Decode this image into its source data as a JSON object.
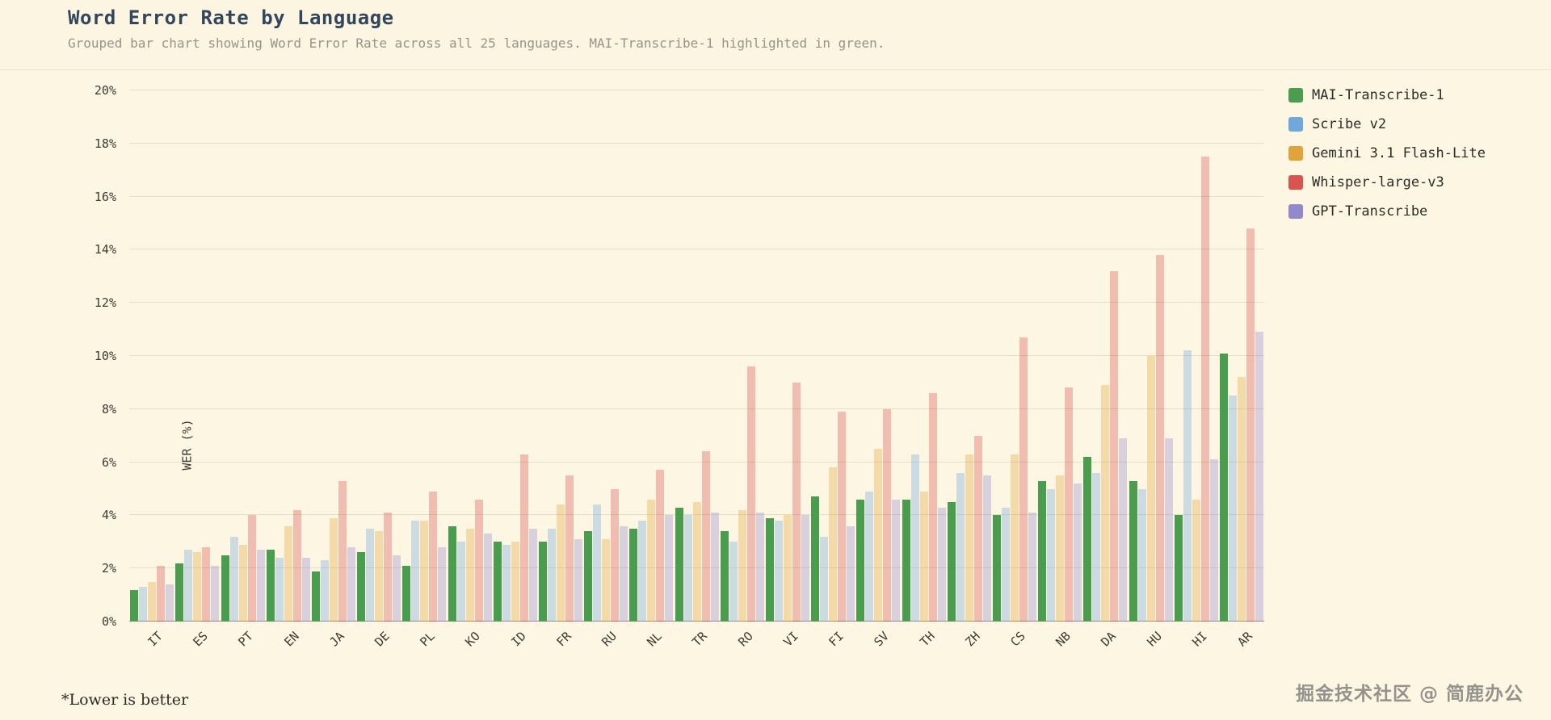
{
  "header": {
    "title": "Word Error Rate by Language",
    "subtitle": "Grouped bar chart showing Word Error Rate across all 25 languages. MAI-Transcribe-1 highlighted in green."
  },
  "footer": {
    "note": "*Lower is better",
    "watermark": "掘金技术社区 @ 简鹿办公"
  },
  "colors": {
    "background": "#fdf6e3",
    "title_text": "#33475c",
    "subtitle_text": "#98938b",
    "axis_text": "#3c3c35",
    "gridline": "#e4ddc7",
    "axis_line": "#8c867a",
    "highlight_green": "#4a9d4e"
  },
  "chart_data": {
    "type": "bar",
    "title": "Word Error Rate by Language",
    "xlabel": "",
    "ylabel": "WER (%)",
    "ylim": [
      0,
      20
    ],
    "ytick_step": 2,
    "ytick_suffix": "%",
    "grid": true,
    "legend_position": "top-right",
    "categories": [
      "IT",
      "ES",
      "PT",
      "EN",
      "JA",
      "DE",
      "PL",
      "KO",
      "ID",
      "FR",
      "RU",
      "NL",
      "TR",
      "RO",
      "VI",
      "FI",
      "SV",
      "TH",
      "ZH",
      "CS",
      "NB",
      "DA",
      "HU",
      "HI",
      "AR"
    ],
    "series": [
      {
        "name": "MAI-Transcribe-1",
        "color": "#4a9d4e",
        "opacity": 1,
        "values": [
          1.2,
          2.2,
          2.5,
          2.7,
          1.9,
          2.6,
          2.1,
          3.6,
          3.0,
          3.0,
          3.4,
          3.5,
          4.3,
          3.4,
          3.9,
          4.7,
          4.6,
          4.6,
          4.5,
          4.0,
          5.3,
          6.2,
          5.3,
          4.0,
          10.1
        ]
      },
      {
        "name": "Scribe v2",
        "color": "#6fa8dc",
        "opacity": 0.35,
        "values": [
          1.3,
          2.7,
          3.2,
          2.4,
          2.3,
          3.5,
          3.8,
          3.0,
          2.9,
          3.5,
          4.4,
          3.8,
          4.0,
          3.0,
          3.8,
          3.2,
          4.9,
          6.3,
          5.6,
          4.3,
          5.0,
          5.6,
          5.0,
          10.2,
          8.5
        ]
      },
      {
        "name": "Gemini 3.1 Flash-Lite",
        "color": "#e2a33c",
        "opacity": 0.35,
        "values": [
          1.5,
          2.6,
          2.9,
          3.6,
          3.9,
          3.4,
          3.8,
          3.5,
          3.0,
          4.4,
          3.1,
          4.6,
          4.5,
          4.2,
          4.0,
          5.8,
          6.5,
          4.9,
          6.3,
          6.3,
          5.5,
          8.9,
          10.0,
          4.6,
          9.2
        ]
      },
      {
        "name": "Whisper-large-v3",
        "color": "#d9534f",
        "opacity": 0.35,
        "values": [
          2.1,
          2.8,
          4.0,
          4.2,
          5.3,
          4.1,
          4.9,
          4.6,
          6.3,
          5.5,
          5.0,
          5.7,
          6.4,
          9.6,
          9.0,
          7.9,
          8.0,
          8.6,
          7.0,
          10.7,
          8.8,
          13.2,
          13.8,
          17.5,
          14.8
        ]
      },
      {
        "name": "GPT-Transcribe",
        "color": "#9189ce",
        "opacity": 0.35,
        "values": [
          1.4,
          2.1,
          2.7,
          2.4,
          2.8,
          2.5,
          2.8,
          3.3,
          3.5,
          3.1,
          3.6,
          4.0,
          4.1,
          4.1,
          4.0,
          3.6,
          4.6,
          4.3,
          5.5,
          4.1,
          5.2,
          6.9,
          6.9,
          6.1,
          10.9
        ]
      }
    ]
  }
}
